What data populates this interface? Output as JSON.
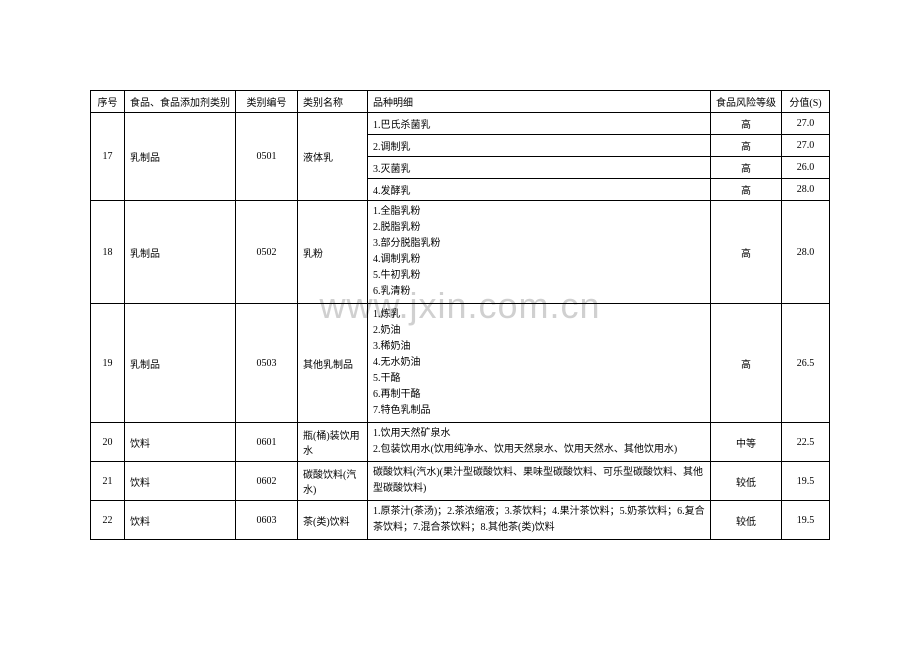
{
  "watermark": "www.jxin.com.cn",
  "headers": {
    "seq": "序号",
    "category": "食品、食品添加剂类别",
    "code": "类别编号",
    "name": "类别名称",
    "detail": "品种明细",
    "risk": "食品风险等级",
    "score": "分值(S)"
  },
  "row17": {
    "seq": "17",
    "category": "乳制品",
    "code": "0501",
    "name": "液体乳",
    "d1": "1.巴氏杀菌乳",
    "r1": "高",
    "s1": "27.0",
    "d2": "2.调制乳",
    "r2": "高",
    "s2": "27.0",
    "d3": "3.灭菌乳",
    "r3": "高",
    "s3": "26.0",
    "d4": "4.发酵乳",
    "r4": "高",
    "s4": "28.0"
  },
  "row18": {
    "seq": "18",
    "category": "乳制品",
    "code": "0502",
    "name": "乳粉",
    "details": "1.全脂乳粉\n2.脱脂乳粉\n3.部分脱脂乳粉\n4.调制乳粉\n5.牛初乳粉\n6.乳清粉",
    "risk": "高",
    "score": "28.0"
  },
  "row19": {
    "seq": "19",
    "category": "乳制品",
    "code": "0503",
    "name": "其他乳制品",
    "details": "1.炼乳\n2.奶油\n3.稀奶油\n4.无水奶油\n5.干酪\n6.再制干酪\n7.特色乳制品",
    "risk": "高",
    "score": "26.5"
  },
  "row20": {
    "seq": "20",
    "category": "饮料",
    "code": "0601",
    "name": "瓶(桶)装饮用水",
    "details": "1.饮用天然矿泉水\n2.包装饮用水(饮用纯净水、饮用天然泉水、饮用天然水、其他饮用水)",
    "risk": "中等",
    "score": "22.5"
  },
  "row21": {
    "seq": "21",
    "category": "饮料",
    "code": "0602",
    "name": "碳酸饮料(汽水)",
    "details": "碳酸饮料(汽水)(果汁型碳酸饮料、果味型碳酸饮料、可乐型碳酸饮料、其他型碳酸饮料)",
    "risk": "较低",
    "score": "19.5"
  },
  "row22": {
    "seq": "22",
    "category": "饮料",
    "code": "0603",
    "name": "茶(类)饮料",
    "details": "1.原茶汁(茶汤)；2.茶浓缩液；3.茶饮料；4.果汁茶饮料；5.奶茶饮料；6.复合茶饮料；7.混合茶饮料；8.其他茶(类)饮料",
    "risk": "较低",
    "score": "19.5"
  },
  "style": {
    "border_color": "#000000",
    "background_color": "#ffffff",
    "font_size": 10,
    "watermark_color": "#d0d0d0",
    "watermark_fontsize": 36
  }
}
